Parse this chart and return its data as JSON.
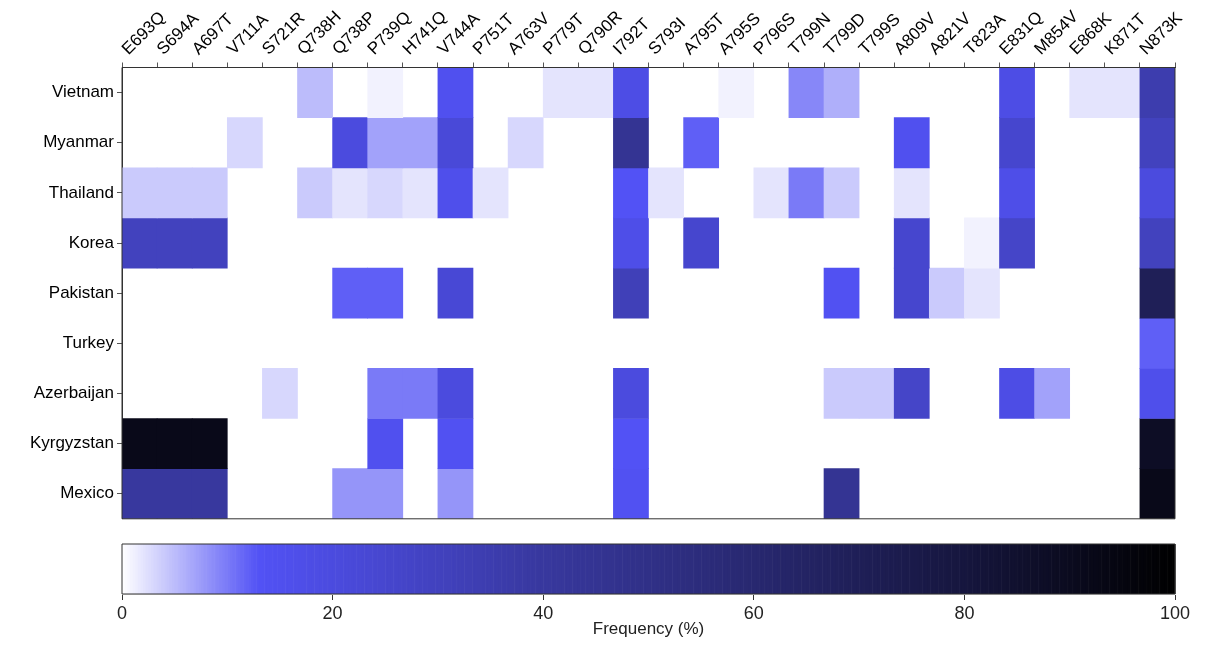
{
  "chart_data": {
    "type": "heatmap",
    "xlabel": null,
    "clabel": "Frequency (%)",
    "categories": [
      "E693Q",
      "S694A",
      "A697T",
      "V711A",
      "S721R",
      "Q738H",
      "Q738P",
      "P739Q",
      "H741Q",
      "V744A",
      "P751T",
      "A763V",
      "P779T",
      "Q790R",
      "I792T",
      "S793I",
      "A795T",
      "A795S",
      "P796S",
      "T799N",
      "T799D",
      "T799S",
      "A809V",
      "A821V",
      "T823A",
      "E831Q",
      "M854V",
      "E868K",
      "K871T",
      "N873K"
    ],
    "y_categories": [
      "Vietnam",
      "Myanmar",
      "Thailand",
      "Korea",
      "Pakistan",
      "Turkey",
      "Azerbaijan",
      "Kyrgyzstan",
      "Mexico"
    ],
    "cells": [
      [
        null,
        null,
        null,
        null,
        null,
        5,
        null,
        1,
        null,
        15,
        null,
        null,
        2,
        2,
        18,
        null,
        null,
        1,
        null,
        9,
        6,
        null,
        null,
        null,
        null,
        18,
        null,
        2,
        2,
        35
      ],
      [
        null,
        null,
        null,
        3,
        null,
        null,
        20,
        7,
        7,
        22,
        null,
        3,
        null,
        null,
        45,
        null,
        12,
        null,
        null,
        null,
        null,
        null,
        15,
        null,
        null,
        25,
        null,
        null,
        null,
        30
      ],
      [
        4,
        4,
        4,
        null,
        null,
        4,
        2,
        3,
        2,
        16,
        2,
        null,
        null,
        null,
        13,
        2,
        null,
        null,
        2,
        10,
        4,
        null,
        2,
        null,
        null,
        17,
        null,
        null,
        null,
        20
      ],
      [
        30,
        30,
        30,
        null,
        null,
        null,
        null,
        null,
        null,
        null,
        null,
        null,
        null,
        null,
        17,
        null,
        25,
        null,
        null,
        null,
        null,
        null,
        25,
        null,
        1,
        27,
        null,
        null,
        null,
        30
      ],
      [
        null,
        null,
        null,
        null,
        null,
        null,
        12,
        12,
        null,
        23,
        null,
        null,
        null,
        null,
        32,
        null,
        null,
        null,
        null,
        null,
        14,
        null,
        25,
        4,
        2,
        null,
        null,
        null,
        null,
        70
      ],
      [
        null,
        null,
        null,
        null,
        null,
        null,
        null,
        null,
        null,
        null,
        null,
        null,
        null,
        null,
        null,
        null,
        null,
        null,
        null,
        null,
        null,
        null,
        null,
        null,
        null,
        null,
        null,
        null,
        null,
        12
      ],
      [
        null,
        null,
        null,
        null,
        3,
        null,
        null,
        10,
        10,
        20,
        null,
        null,
        null,
        null,
        20,
        null,
        null,
        null,
        null,
        null,
        4,
        4,
        27,
        null,
        null,
        18,
        7,
        null,
        null,
        16
      ],
      [
        92,
        92,
        92,
        null,
        null,
        null,
        null,
        15,
        null,
        14,
        null,
        null,
        null,
        null,
        13,
        null,
        null,
        null,
        null,
        null,
        null,
        null,
        null,
        null,
        null,
        null,
        null,
        null,
        null,
        88
      ],
      [
        40,
        40,
        40,
        null,
        null,
        null,
        8,
        8,
        null,
        8,
        null,
        null,
        null,
        null,
        14,
        null,
        null,
        null,
        null,
        null,
        45,
        null,
        null,
        null,
        null,
        null,
        null,
        null,
        null,
        92
      ]
    ],
    "clim": [
      0,
      100
    ],
    "cticks": [
      0,
      20,
      40,
      60,
      80,
      100
    ]
  }
}
